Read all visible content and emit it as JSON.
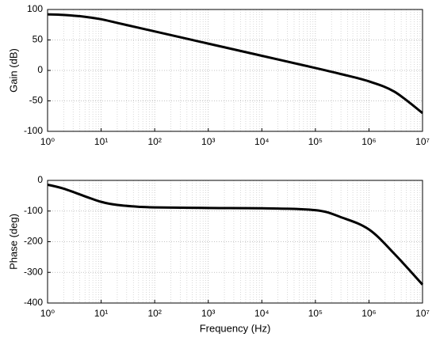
{
  "chart_data": [
    {
      "type": "line",
      "xscale": "log",
      "grid": true,
      "minor_grid": true,
      "ylabel": "Gain (dB)",
      "x": [
        1,
        2,
        5,
        10,
        20,
        50,
        100,
        1000,
        10000,
        100000,
        300000,
        1000000,
        3000000,
        10000000
      ],
      "values": [
        92,
        91,
        88,
        84,
        78,
        70,
        64,
        44,
        24,
        4,
        -6,
        -18,
        -35,
        -70
      ],
      "color": "#000000",
      "xlim": [
        1,
        10000000
      ],
      "xticks": [
        {
          "value": 1,
          "label": "10⁰"
        },
        {
          "value": 10,
          "label": "10¹"
        },
        {
          "value": 100,
          "label": "10²"
        },
        {
          "value": 1000,
          "label": "10³"
        },
        {
          "value": 10000,
          "label": "10⁴"
        },
        {
          "value": 100000,
          "label": "10⁵"
        },
        {
          "value": 1000000,
          "label": "10⁶"
        },
        {
          "value": 10000000,
          "label": "10⁷"
        }
      ],
      "ylim": [
        -100,
        100
      ],
      "yticks": [
        -100,
        -50,
        0,
        50,
        100
      ]
    },
    {
      "type": "line",
      "xscale": "log",
      "grid": true,
      "minor_grid": true,
      "ylabel": "Phase (deg)",
      "xlabel": "Frequency (Hz)",
      "x": [
        1,
        2,
        5,
        10,
        20,
        50,
        100,
        1000,
        10000,
        100000,
        300000,
        1000000,
        3000000,
        10000000
      ],
      "values": [
        -14,
        -27,
        -52,
        -70,
        -80,
        -86,
        -88,
        -90,
        -91,
        -97,
        -120,
        -160,
        -240,
        -340
      ],
      "color": "#000000",
      "xlim": [
        1,
        10000000
      ],
      "xticks": [
        {
          "value": 1,
          "label": "10⁰"
        },
        {
          "value": 10,
          "label": "10¹"
        },
        {
          "value": 100,
          "label": "10²"
        },
        {
          "value": 1000,
          "label": "10³"
        },
        {
          "value": 10000,
          "label": "10⁴"
        },
        {
          "value": 100000,
          "label": "10⁵"
        },
        {
          "value": 1000000,
          "label": "10⁶"
        },
        {
          "value": 10000000,
          "label": "10⁷"
        }
      ],
      "ylim": [
        -400,
        0
      ],
      "yticks": [
        -400,
        -300,
        -200,
        -100,
        0
      ]
    }
  ]
}
